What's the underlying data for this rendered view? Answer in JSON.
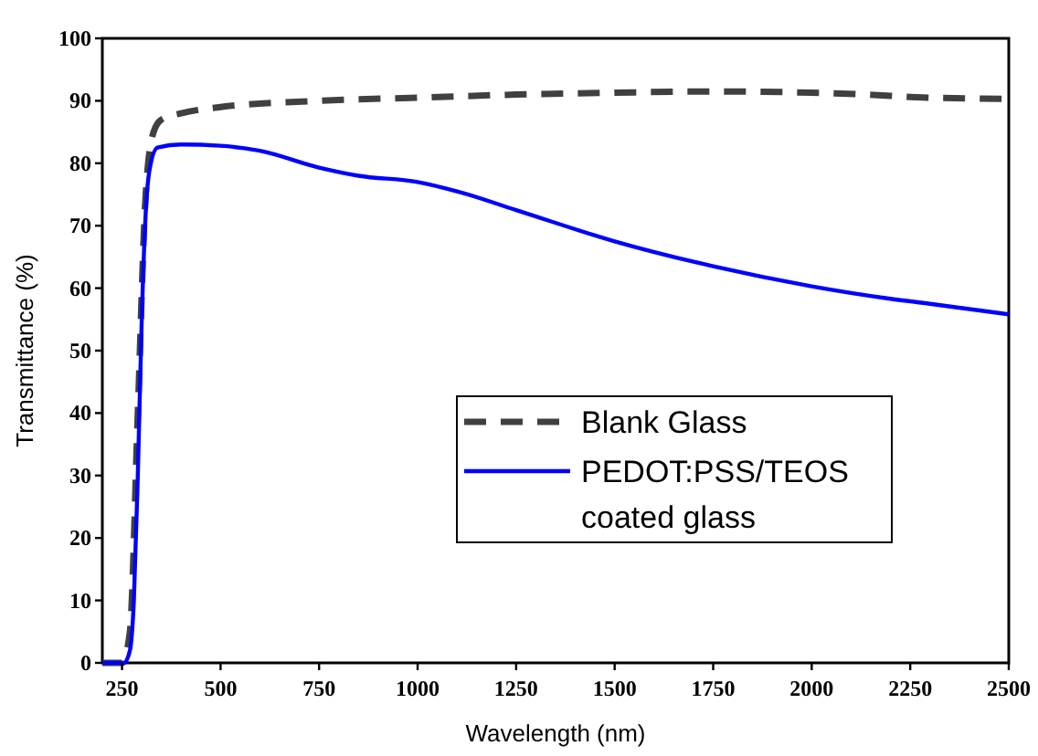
{
  "chart_data": {
    "type": "line",
    "xlabel": "Wavelength (nm)",
    "ylabel": "Transmittance (%)",
    "xlim": [
      200,
      2500
    ],
    "xticks": [
      250,
      500,
      750,
      1000,
      1250,
      1500,
      1750,
      2000,
      2250,
      2500
    ],
    "ylim": [
      0,
      100
    ],
    "yticks": [
      0,
      10,
      20,
      30,
      40,
      50,
      60,
      70,
      80,
      90,
      100
    ],
    "legend": "right",
    "grid": false,
    "marker": "none",
    "series": [
      {
        "name": "Blank Glass",
        "color": "#404040",
        "line_style": "dashed",
        "x": [
          200,
          250,
          270,
          290,
          310,
          330,
          350,
          400,
          500,
          750,
          1000,
          1250,
          1500,
          1750,
          2000,
          2200,
          2250,
          2500
        ],
        "values": [
          0,
          0,
          5,
          40,
          75,
          85,
          87,
          88,
          89,
          90,
          90.5,
          91,
          91.3,
          91.5,
          91.3,
          90.8,
          90.6,
          90.3
        ]
      },
      {
        "name": "PEDOT:PSS/TEOS coated glass",
        "color": "#0000ff",
        "line_style": "solid",
        "x": [
          200,
          255,
          270,
          280,
          290,
          300,
          310,
          320,
          340,
          400,
          500,
          600,
          750,
          850,
          1000,
          1100,
          1250,
          1500,
          1750,
          2000,
          2200,
          2300,
          2500
        ],
        "values": [
          0,
          0,
          2,
          10,
          30,
          55,
          72,
          79,
          82.5,
          83,
          82.8,
          82,
          79.3,
          78,
          77,
          75.5,
          72.5,
          67.5,
          63.5,
          60.3,
          58.3,
          57.5,
          55.8
        ]
      }
    ]
  }
}
